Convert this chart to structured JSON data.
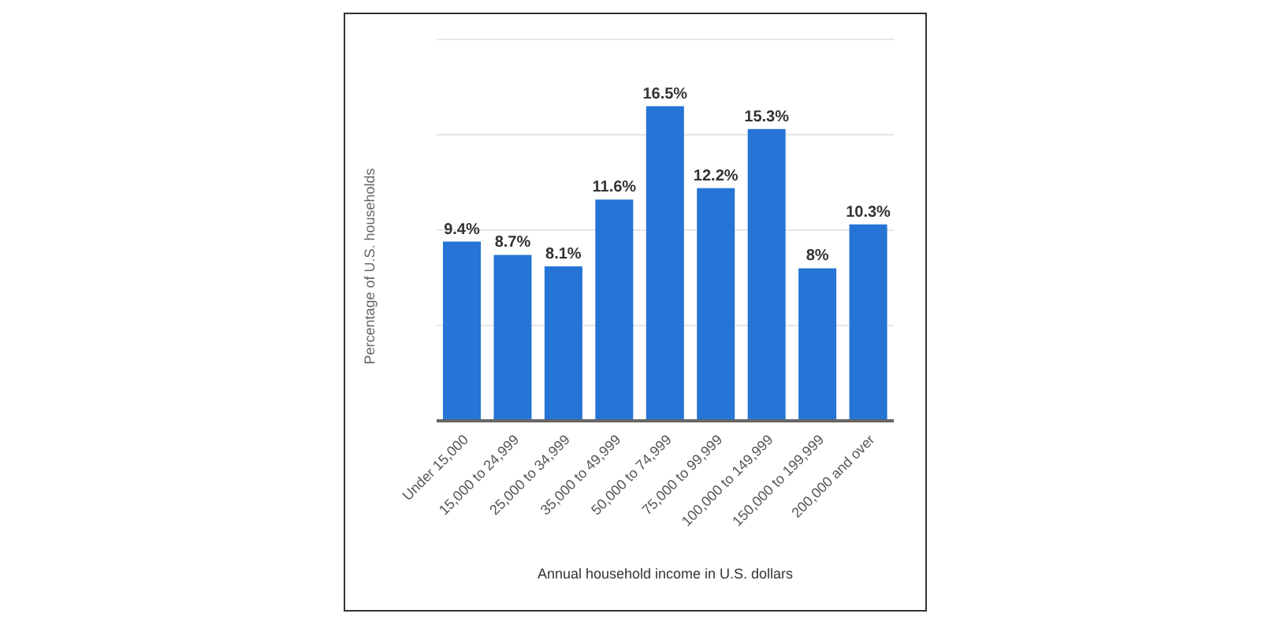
{
  "chart_data": {
    "type": "bar",
    "xlabel": "Annual household income in U.S. dollars",
    "ylabel": "Percentage of U.S. households",
    "categories": [
      "Under 15,000",
      "15,000 to 24,999",
      "25,000 to 34,999",
      "35,000 to 49,999",
      "50,000 to 74,999",
      "75,000 to 99,999",
      "100,000 to 149,999",
      "150,000 to 199,999",
      "200,000 and over"
    ],
    "values": [
      9.4,
      8.7,
      8.1,
      11.6,
      16.5,
      12.2,
      15.3,
      8,
      10.3
    ],
    "value_labels": [
      "9.4%",
      "8.7%",
      "8.1%",
      "11.6%",
      "16.5%",
      "12.2%",
      "15.3%",
      "8%",
      "10.3%"
    ],
    "color": "#2574d6",
    "ylim": [
      0,
      20
    ],
    "yticks": [
      {
        "value": 0,
        "label": null
      },
      {
        "value": 5,
        "label": null
      },
      {
        "value": 10,
        "label": null
      },
      {
        "value": 15,
        "label": null
      },
      {
        "value": 20,
        "label": null
      }
    ],
    "grid": "y",
    "tick_labels": "x",
    "legend": false
  }
}
